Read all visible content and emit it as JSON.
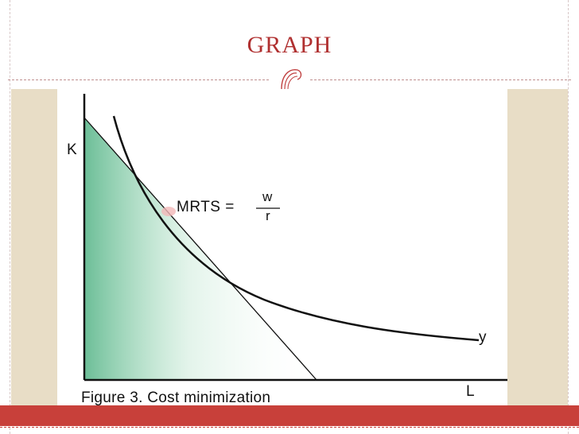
{
  "slide": {
    "title": "GRAPH"
  },
  "figure": {
    "axis_k_label": "K",
    "axis_l_label": "L",
    "curve_label": "y",
    "mrts_label": "MRTS =",
    "fraction_numerator": "w",
    "fraction_denominator": "r",
    "caption": "Figure 3. Cost minimization"
  },
  "colors": {
    "title": "#b03030",
    "accent_bar": "#c8403a",
    "side_band": "#e8ddc6",
    "gradient_green": "#3aa874"
  }
}
